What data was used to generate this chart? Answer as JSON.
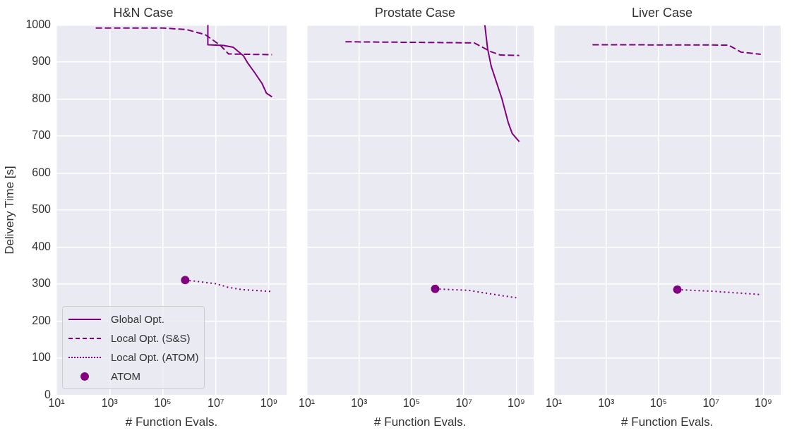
{
  "chart_data": [
    {
      "type": "line",
      "title": "H&N Case",
      "xlabel": "# Function Evals.",
      "ylabel": "Delivery Time [s]",
      "log": "x",
      "grid": true,
      "legend": "bottom left",
      "xlim": [
        10,
        4600000000
      ],
      "ylim": [
        0,
        1000
      ],
      "xticks": [
        {
          "value": 10,
          "label": "10¹"
        },
        {
          "value": 1000,
          "label": "10³"
        },
        {
          "value": 100000,
          "label": "10⁵"
        },
        {
          "value": 10000000,
          "label": "10⁷"
        },
        {
          "value": 1000000000,
          "label": "10⁹"
        }
      ],
      "yticks": [
        0,
        100,
        200,
        300,
        400,
        500,
        600,
        700,
        800,
        900,
        1000
      ],
      "series": [
        {
          "name": "Global Opt.",
          "type": "line",
          "line_style": "solid",
          "marker": "none",
          "color": "#800080",
          "x": [
            5000000,
            5000000,
            20000000,
            45000000,
            110000000,
            160000000,
            280000000,
            550000000,
            800000000,
            1300000000
          ],
          "values": [
            1000,
            947,
            945,
            940,
            917,
            897,
            873,
            842,
            816,
            806
          ]
        },
        {
          "name": "Local Opt. (S&S)",
          "type": "line",
          "line_style": "dashed",
          "marker": "none",
          "color": "#800080",
          "x": [
            300,
            100000,
            800000,
            4000000,
            15000000,
            30000000,
            1300000000
          ],
          "values": [
            992,
            992,
            988,
            974,
            945,
            922,
            920
          ]
        },
        {
          "name": "Local Opt. (ATOM)",
          "type": "line",
          "line_style": "dotted",
          "marker": "none",
          "color": "#800080",
          "x": [
            700000,
            10000000,
            30000000,
            100000000,
            1300000000
          ],
          "values": [
            311,
            301,
            291,
            285,
            280
          ]
        },
        {
          "name": "ATOM",
          "type": "scatter",
          "marker": "circle",
          "color": "#800080",
          "x": [
            700000
          ],
          "values": [
            311
          ]
        }
      ]
    },
    {
      "type": "line",
      "title": "Prostate Case",
      "xlabel": "# Function Evals.",
      "log": "x",
      "grid": true,
      "tick_labels": "x",
      "xlim": [
        10,
        4600000000
      ],
      "ylim": [
        0,
        1000
      ],
      "xticks": [
        {
          "value": 10,
          "label": "10¹"
        },
        {
          "value": 1000,
          "label": "10³"
        },
        {
          "value": 100000,
          "label": "10⁵"
        },
        {
          "value": 10000000,
          "label": "10⁷"
        },
        {
          "value": 1000000000,
          "label": "10⁹"
        }
      ],
      "yticks": [
        0,
        100,
        200,
        300,
        400,
        500,
        600,
        700,
        800,
        900,
        1000
      ],
      "series": [
        {
          "type": "line",
          "line_style": "solid",
          "marker": "none",
          "color": "#800080",
          "x": [
            63000000,
            80000000,
            110000000,
            280000000,
            500000000,
            700000000,
            1300000000
          ],
          "values": [
            1000,
            937,
            889,
            802,
            735,
            707,
            685
          ]
        },
        {
          "type": "line",
          "line_style": "dashed",
          "marker": "none",
          "color": "#800080",
          "x": [
            300,
            25000000,
            100000000,
            250000000,
            1300000000
          ],
          "values": [
            955,
            952,
            929,
            919,
            918
          ]
        },
        {
          "type": "line",
          "line_style": "dotted",
          "marker": "none",
          "color": "#800080",
          "x": [
            800000,
            16000000,
            50000000,
            1000000000
          ],
          "values": [
            287,
            283,
            277,
            263
          ]
        },
        {
          "type": "scatter",
          "marker": "circle",
          "color": "#800080",
          "x": [
            800000
          ],
          "values": [
            287
          ]
        }
      ]
    },
    {
      "type": "line",
      "title": "Liver Case",
      "xlabel": "# Function Evals.",
      "log": "x",
      "grid": true,
      "tick_labels": "x",
      "xlim": [
        10,
        4600000000
      ],
      "ylim": [
        0,
        1000
      ],
      "xticks": [
        {
          "value": 10,
          "label": "10¹"
        },
        {
          "value": 1000,
          "label": "10³"
        },
        {
          "value": 100000,
          "label": "10⁵"
        },
        {
          "value": 10000000,
          "label": "10⁷"
        },
        {
          "value": 1000000000,
          "label": "10⁹"
        }
      ],
      "yticks": [
        0,
        100,
        200,
        300,
        400,
        500,
        600,
        700,
        800,
        900,
        1000
      ],
      "series": [
        {
          "type": "line",
          "line_style": "dashed",
          "marker": "none",
          "color": "#800080",
          "x": [
            300,
            47000000,
            140000000,
            800000000
          ],
          "values": [
            947,
            946,
            927,
            921
          ]
        },
        {
          "type": "line",
          "line_style": "dotted",
          "marker": "none",
          "color": "#800080",
          "x": [
            520000,
            10000000,
            700000000
          ],
          "values": [
            285,
            281,
            272
          ]
        },
        {
          "type": "scatter",
          "marker": "circle",
          "color": "#800080",
          "x": [
            520000
          ],
          "values": [
            285
          ]
        }
      ]
    }
  ]
}
